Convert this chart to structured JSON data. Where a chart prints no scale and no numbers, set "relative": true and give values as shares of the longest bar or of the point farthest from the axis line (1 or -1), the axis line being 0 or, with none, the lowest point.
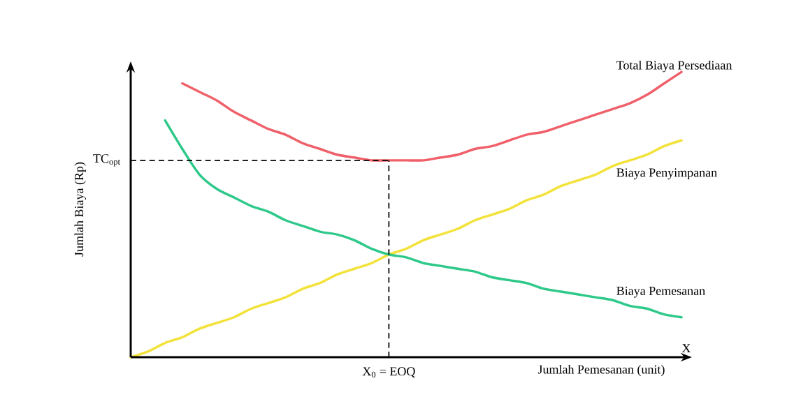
{
  "chart_data": {
    "type": "line",
    "relative": true,
    "xlabel": "Jumlah Pemesanan (unit)",
    "ylabel": "Jumlah Biaya (Rp)",
    "categories": [
      null,
      null,
      null,
      null,
      null,
      null,
      null,
      null,
      null,
      null,
      null,
      null,
      null,
      null,
      null,
      null,
      null,
      null,
      null,
      null,
      null,
      null,
      null,
      null,
      null,
      null,
      null,
      null,
      null,
      null,
      null,
      null,
      null
    ],
    "series": [
      {
        "name": "Total Biaya Persediaan",
        "color": "#f0606a",
        "values": [
          null,
          null,
          null,
          0.96,
          0.93,
          0.9,
          0.86,
          0.83,
          0.8,
          0.78,
          0.75,
          0.73,
          0.71,
          0.7,
          0.69,
          0.69,
          0.69,
          0.69,
          0.7,
          0.71,
          0.73,
          0.74,
          0.76,
          0.78,
          0.79,
          0.81,
          0.83,
          0.85,
          0.87,
          0.89,
          0.92,
          0.96,
          1
        ]
      },
      {
        "name": "Biaya Penyimpanan",
        "color": "#f2e23a",
        "values": [
          0,
          0.02,
          0.05,
          0.07,
          0.1,
          0.12,
          0.14,
          0.17,
          0.19,
          0.21,
          0.24,
          0.26,
          0.29,
          0.31,
          0.33,
          0.36,
          0.38,
          0.41,
          0.43,
          0.45,
          0.48,
          0.5,
          0.52,
          0.55,
          0.57,
          0.6,
          0.62,
          0.64,
          0.67,
          0.69,
          0.71,
          0.74,
          0.76
        ]
      },
      {
        "name": "Biaya Pemesanan",
        "color": "#2ec98a",
        "values": [
          null,
          null,
          0.83,
          0.73,
          0.64,
          0.59,
          0.56,
          0.53,
          0.51,
          0.48,
          0.46,
          0.44,
          0.43,
          0.41,
          0.38,
          0.36,
          0.35,
          0.33,
          0.32,
          0.31,
          0.3,
          0.28,
          0.27,
          0.26,
          0.24,
          0.23,
          0.22,
          0.21,
          0.2,
          0.18,
          0.17,
          0.15,
          0.14
        ]
      }
    ],
    "ref_lines": [
      {
        "axis": "y",
        "value": 0.69,
        "label": "TC$_{opt}$",
        "line_style": "dashed"
      }
    ],
    "annotations": [
      "X$_{0}$ = EOQ",
      "X"
    ],
    "marker": "none",
    "line_style": "solid"
  }
}
